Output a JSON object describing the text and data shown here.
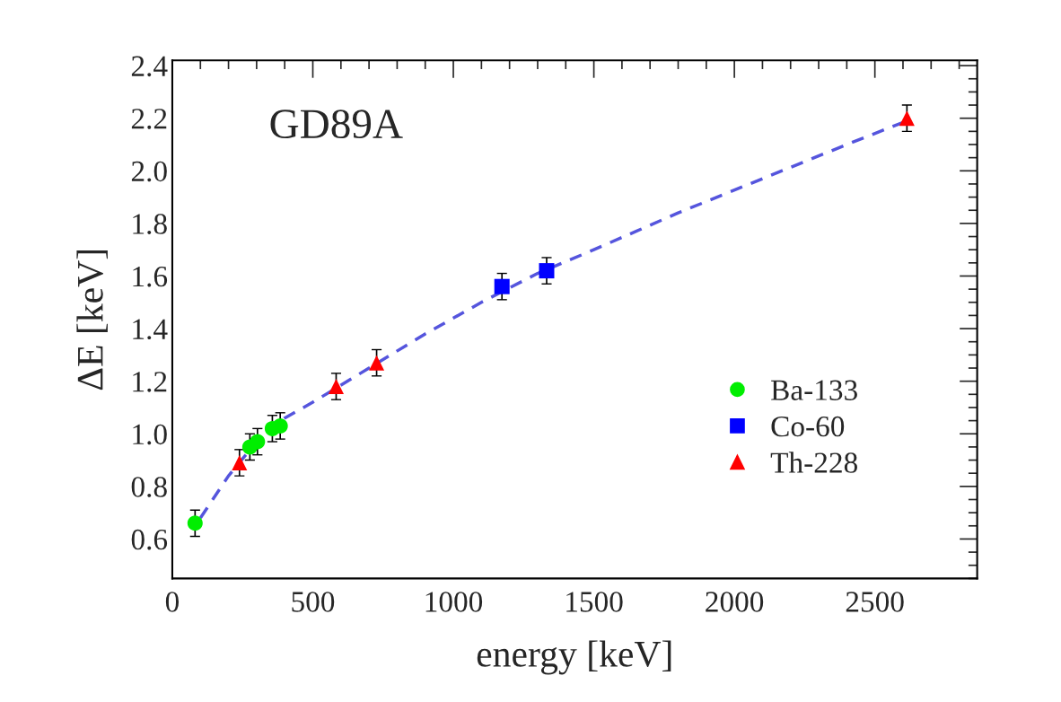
{
  "chart_data": {
    "type": "scatter",
    "xlabel": "energy [keV]",
    "ylabel": "ΔE [keV]",
    "annotations": [
      "GD89A"
    ],
    "xlim": [
      0,
      2864
    ],
    "ylim": [
      0.45,
      2.42
    ],
    "xticks": [
      0,
      500,
      1000,
      1500,
      2000,
      2500
    ],
    "yticks": [
      0.6,
      0.8,
      {
        "value": 1,
        "label": "1.0"
      },
      1.2,
      1.4,
      1.6,
      1.8,
      {
        "value": 2,
        "label": "2.0"
      },
      2.2,
      2.4
    ],
    "grid": false,
    "legend": "lower right",
    "series": [
      {
        "name": "Ba-133",
        "color": "#00ee00",
        "marker": "circle",
        "x": [
          81,
          276,
          303,
          356,
          384
        ],
        "values": [
          0.66,
          0.95,
          0.97,
          1.02,
          1.03
        ],
        "errors": [
          0.05,
          0.05,
          0.05,
          0.05,
          0.05
        ]
      },
      {
        "name": "Co-60",
        "color": "#0000ff",
        "marker": "square",
        "x": [
          1173,
          1332
        ],
        "values": [
          1.56,
          1.62
        ],
        "errors": [
          0.05,
          0.05
        ]
      },
      {
        "name": "Th-228",
        "color": "#ff0000",
        "marker": "triangle",
        "x": [
          239,
          583,
          727,
          2614
        ],
        "values": [
          0.89,
          1.18,
          1.27,
          2.2
        ],
        "errors": [
          0.05,
          0.05,
          0.05,
          0.05
        ]
      },
      {
        "type": "line",
        "color": "#5555dd",
        "line_style": "dashed",
        "marker": "none",
        "x": [
          100,
          200,
          300,
          400,
          500,
          700,
          900,
          1100,
          1300,
          1500,
          1800,
          2100,
          2400,
          2614
        ],
        "values": [
          0.68,
          0.84,
          0.97,
          1.06,
          1.12,
          1.25,
          1.38,
          1.5,
          1.61,
          1.7,
          1.84,
          1.97,
          2.1,
          2.19
        ]
      }
    ]
  }
}
